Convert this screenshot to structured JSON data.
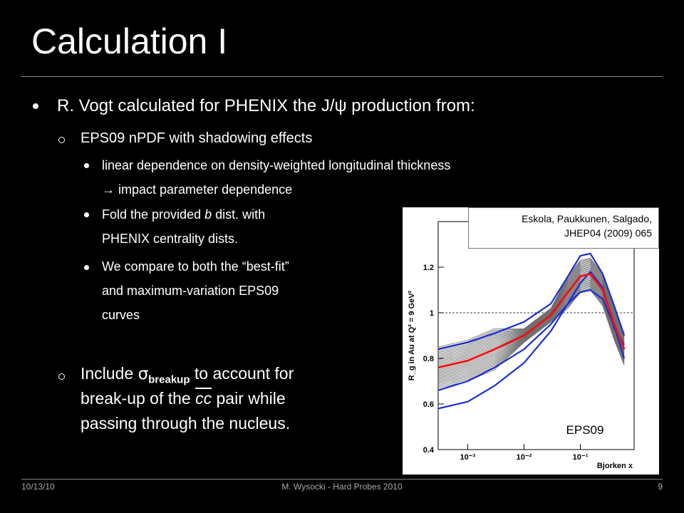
{
  "slide": {
    "title": "Calculation I",
    "main_bullet": "R. Vogt calculated for PHENIX the J/ψ production from:",
    "sub1": "EPS09 nPDF with shadowing effects",
    "sub1_items": [
      "linear dependence on density-weighted longitudinal thickness",
      "impact parameter dependence"
    ],
    "sub1_arrow": "→",
    "fold": {
      "pre": "Fold the provided ",
      "b": "b",
      "post": " dist. with",
      "line2": "PHENIX centrality dists."
    },
    "compare": [
      "We compare to both the “best-fit”",
      "and maximum-variation EPS09",
      "curves"
    ],
    "include": {
      "pre": "Include ",
      "sigma": "σ",
      "sub": "breakup",
      "post": " to account for",
      "line2_pre": "break-up of the ",
      "cc": "cc",
      "line2_post": " pair while",
      "line3": "passing through the nucleus."
    },
    "cite": [
      "Eskola, Paukkunen, Salgado,",
      "JHEP04 (2009) 065"
    ]
  },
  "footer": {
    "date": "10/13/10",
    "center": "M. Wysocki - Hard Probes 2010",
    "page": "9"
  },
  "chart_data": {
    "type": "line",
    "title": "",
    "ylabel": "R_g in Au at Q² = 9 GeV²",
    "xlabel": "Bjorken x",
    "x_scale": "log",
    "xlim": [
      0.0003,
      0.9
    ],
    "ylim": [
      0.4,
      1.4
    ],
    "xticks": [
      "10⁻³",
      "10⁻²",
      "10⁻¹"
    ],
    "yticks": [
      "0.4",
      "0.6",
      "0.8",
      "1",
      "1.2"
    ],
    "label": "EPS09",
    "reference_line": 1.0,
    "x": [
      0.0003,
      0.001,
      0.003,
      0.01,
      0.03,
      0.06,
      0.1,
      0.15,
      0.25,
      0.4,
      0.6
    ],
    "series": [
      {
        "role": "central",
        "color": "#e8141a",
        "values": [
          0.76,
          0.79,
          0.84,
          0.9,
          0.99,
          1.09,
          1.16,
          1.17,
          1.1,
          0.95,
          0.84
        ]
      },
      {
        "role": "max-variation upper",
        "color": "#1b2ed6",
        "values": [
          0.84,
          0.87,
          0.91,
          0.96,
          1.04,
          1.16,
          1.25,
          1.26,
          1.17,
          1.03,
          0.9
        ]
      },
      {
        "role": "max-variation lower",
        "color": "#1b2ed6",
        "values": [
          0.66,
          0.7,
          0.76,
          0.84,
          0.95,
          1.04,
          1.09,
          1.1,
          1.06,
          0.94,
          0.8
        ]
      },
      {
        "role": "max-variation low-x",
        "color": "#1b2ed6",
        "values": [
          0.58,
          0.61,
          0.68,
          0.78,
          0.92,
          1.04,
          1.13,
          1.18,
          1.11,
          0.93,
          0.86
        ]
      }
    ],
    "grey_series_count": 30
  }
}
